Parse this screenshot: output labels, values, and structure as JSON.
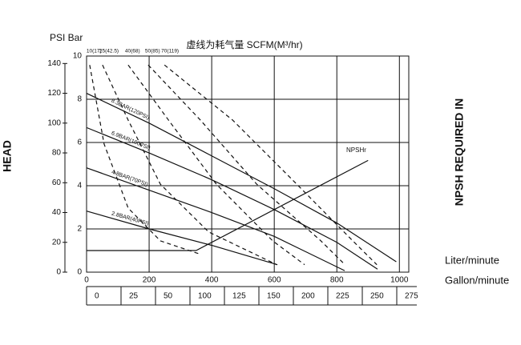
{
  "chart_data": {
    "type": "line",
    "title": "虚线为耗气量 SCFM(M³/hr)",
    "y_label": "PSI Bar",
    "y_axis_title": "HEAD",
    "y2_axis_title": "NPSH REQUIRED IN",
    "x_label": "Liter/minute",
    "x2_label": "Gallon/minute",
    "xlim": [
      0,
      1030
    ],
    "xticks": [
      0,
      200,
      400,
      600,
      800,
      1000
    ],
    "ylim": [
      0,
      145
    ],
    "yticks": [
      0,
      20,
      40,
      60,
      80,
      100,
      120,
      140
    ],
    "y2lim": [
      0,
      10
    ],
    "y2ticks": [
      0,
      2,
      4,
      6,
      8,
      10
    ],
    "gallon_ticks": [
      0,
      25,
      50,
      100,
      125,
      150,
      200,
      225,
      250,
      275
    ],
    "grid": true,
    "series": [
      {
        "name": "8.3BAR(120PSI)",
        "color": "#111111",
        "style": "solid",
        "x": [
          0,
          200,
          400,
          600,
          800,
          990
        ],
        "values": [
          120,
          100,
          78,
          56,
          33,
          7
        ]
      },
      {
        "name": "6.9BAR(100PSI)",
        "color": "#111111",
        "style": "solid",
        "x": [
          0,
          200,
          400,
          600,
          800,
          930
        ],
        "values": [
          97,
          80,
          62,
          42,
          20,
          2
        ]
      },
      {
        "name": "4.8BAR(70PSI)",
        "color": "#111111",
        "style": "solid",
        "x": [
          0,
          200,
          400,
          600,
          825
        ],
        "values": [
          70,
          55,
          40,
          24,
          1
        ]
      },
      {
        "name": "2.8BAR(40PSI)",
        "color": "#111111",
        "style": "solid",
        "x": [
          0,
          200,
          400,
          610
        ],
        "values": [
          41,
          29,
          18,
          5
        ]
      },
      {
        "name": "NPSHr",
        "color": "#111111",
        "style": "solid",
        "x": [
          0,
          350,
          900
        ],
        "values": [
          14.5,
          14.5,
          75
        ]
      },
      {
        "name": "10(17)",
        "color": "#111111",
        "style": "dashed",
        "x": [
          10,
          56,
          133,
          236,
          364
        ],
        "values": [
          139,
          86,
          43,
          21,
          12
        ]
      },
      {
        "name": "25(42.5)",
        "color": "#111111",
        "style": "dashed",
        "x": [
          51,
          133,
          236,
          390,
          608
        ],
        "values": [
          139,
          102,
          59,
          27,
          5
        ]
      },
      {
        "name": "40(68)",
        "color": "#111111",
        "style": "dashed",
        "x": [
          133,
          262,
          415,
          595,
          697
        ],
        "values": [
          139,
          102,
          59,
          21,
          5
        ]
      },
      {
        "name": "50(85)",
        "color": "#111111",
        "style": "dashed",
        "x": [
          197,
          364,
          544,
          749,
          826
        ],
        "values": [
          139,
          102,
          59,
          21,
          5
        ]
      },
      {
        "name": "70(119)",
        "color": "#111111",
        "style": "dashed",
        "x": [
          249,
          467,
          672,
          851,
          928
        ],
        "values": [
          139,
          102,
          59,
          21,
          5
        ]
      }
    ]
  }
}
